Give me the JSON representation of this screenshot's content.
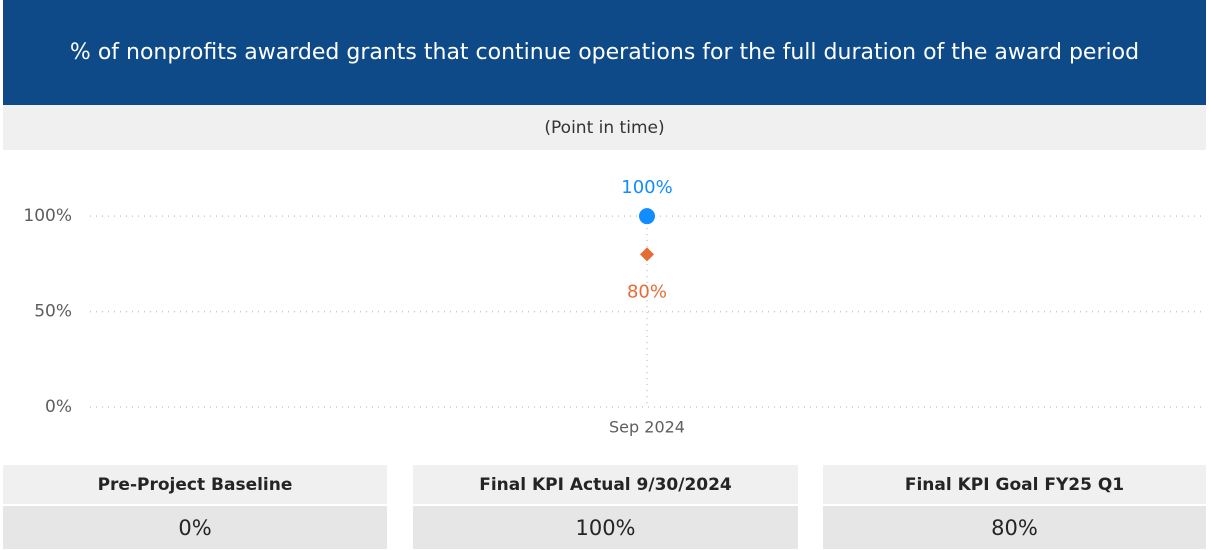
{
  "header": {
    "title": "% of nonprofits awarded grants that continue operations for the full duration of the award period",
    "subtitle": "(Point in time)"
  },
  "chart_data": {
    "type": "line",
    "categories": [
      "Sep 2024"
    ],
    "series": [
      {
        "color": "#118dff",
        "marker": "circle",
        "label_position": "above",
        "values": [
          100
        ],
        "value_labels": [
          "100%"
        ]
      },
      {
        "color": "#e66c37",
        "marker": "diamond",
        "label_position": "below",
        "values": [
          80
        ],
        "value_labels": [
          "80%"
        ]
      }
    ],
    "ylim": [
      0,
      120
    ],
    "yticks": [
      {
        "value": 0,
        "label": "0%"
      },
      {
        "value": 50,
        "label": "50%"
      },
      {
        "value": 100,
        "label": "100%"
      }
    ],
    "grid": true
  },
  "cards": [
    {
      "label": "Pre-Project Baseline",
      "value": "0%"
    },
    {
      "label": "Final KPI Actual 9/30/2024",
      "value": "100%"
    },
    {
      "label": "Final KPI Goal FY25 Q1",
      "value": "80%"
    }
  ]
}
